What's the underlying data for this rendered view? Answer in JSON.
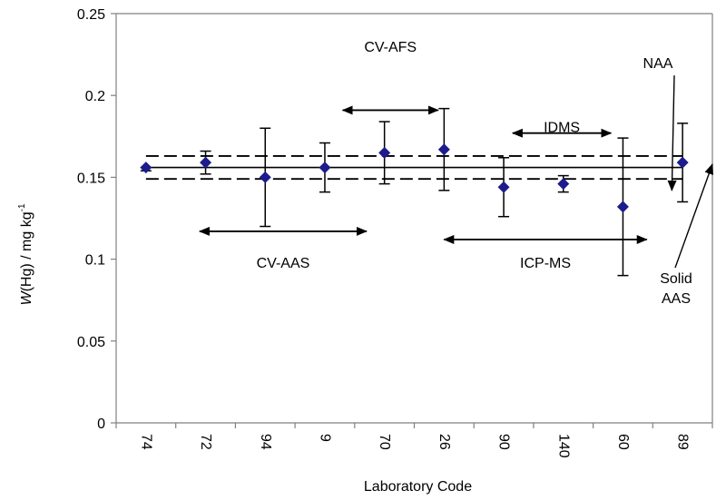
{
  "chart_data": {
    "type": "scatter",
    "title": "",
    "xlabel": "Laboratory Code",
    "ylabel": "W(Hg) / mg kg-1",
    "ylabel_parts": {
      "italic": "W",
      "main": "(Hg) / mg kg",
      "sup": "-1"
    },
    "ylim": [
      0,
      0.25
    ],
    "yticks": [
      "0",
      "0.05",
      "0.1",
      "0.15",
      "0.2",
      "0.25"
    ],
    "ytick_values": [
      0,
      0.05,
      0.1,
      0.15,
      0.2,
      0.25
    ],
    "categories": [
      "74",
      "72",
      "94",
      "9",
      "70",
      "26",
      "90",
      "140",
      "60",
      "89"
    ],
    "values": [
      0.156,
      0.159,
      0.15,
      0.156,
      0.165,
      0.167,
      0.144,
      0.146,
      0.132,
      0.159
    ],
    "error_high": [
      0.156,
      0.166,
      0.18,
      0.171,
      0.184,
      0.192,
      0.162,
      0.151,
      0.174,
      0.183
    ],
    "error_low": [
      0.154,
      0.152,
      0.12,
      0.141,
      0.146,
      0.142,
      0.126,
      0.141,
      0.09,
      0.135
    ],
    "reference_value": 0.156,
    "uncertainty_band": [
      0.149,
      0.163
    ],
    "grid": false,
    "legend": "none",
    "marker_color": "#1c1c8c",
    "annotations": [
      {
        "label": "CV-AFS",
        "range_from": 4.3,
        "range_to": 5.9,
        "y": 0.191,
        "label_y": 0.23
      },
      {
        "label": "IDMS",
        "range_from": 7.15,
        "range_to": 8.8,
        "y": 0.177,
        "label_y": 0.181
      },
      {
        "label": "CV-AAS",
        "range_from": 1.9,
        "range_to": 4.7,
        "y": 0.117,
        "label_y": 0.098
      },
      {
        "label": "ICP-MS",
        "range_from": 6.0,
        "range_to": 9.4,
        "y": 0.112,
        "label_y": 0.098
      },
      {
        "label": "NAA",
        "pointer_to": [
          9.82,
          0.142
        ],
        "label_y": 0.22
      },
      {
        "label": "Solid AAS",
        "lines": [
          "Solid",
          "AAS"
        ],
        "pointer_to": [
          10.5,
          0.158
        ],
        "label_y": 0.082
      }
    ]
  }
}
